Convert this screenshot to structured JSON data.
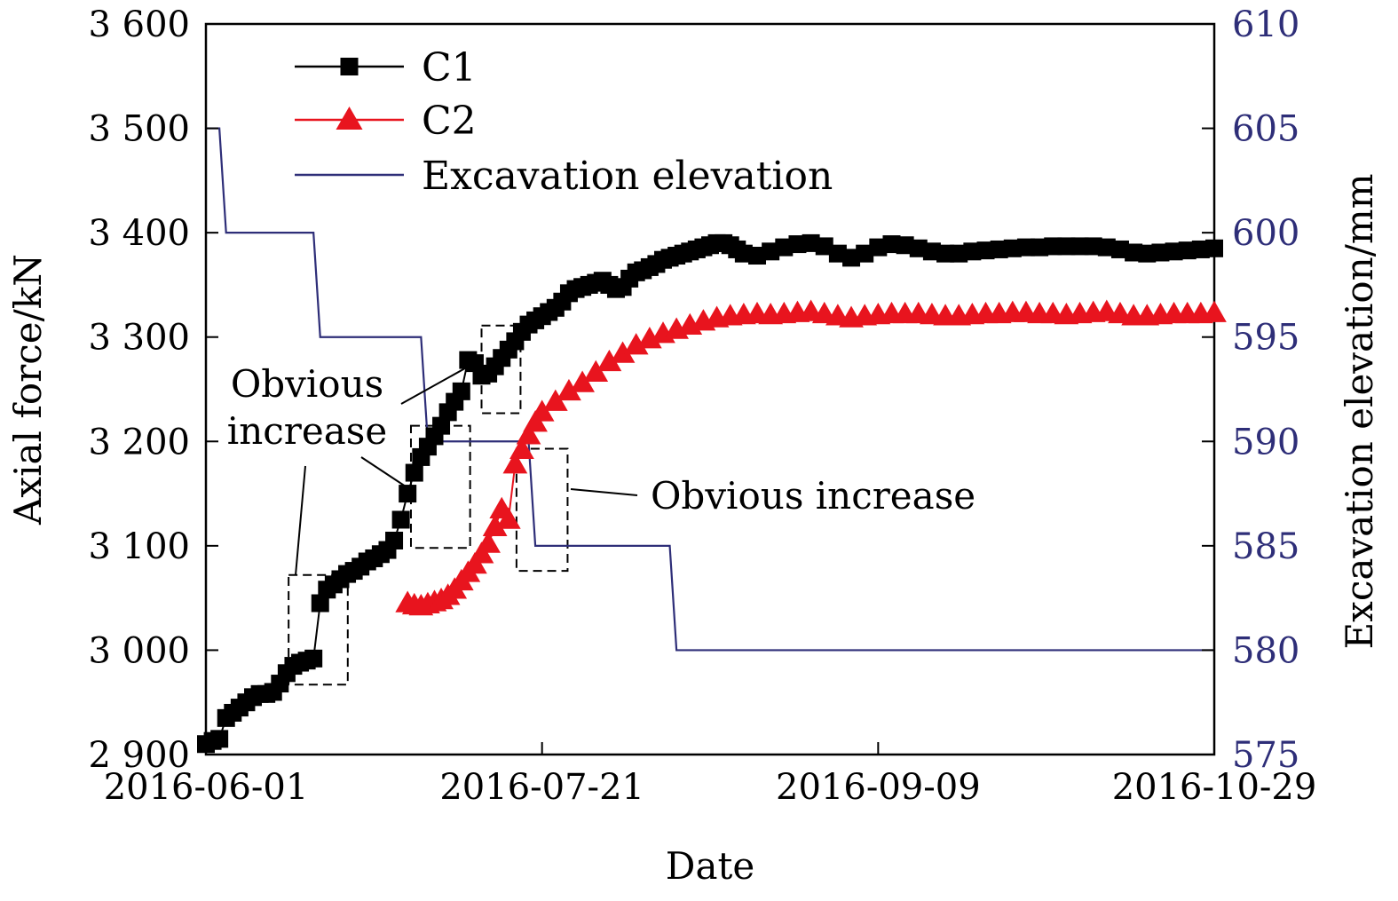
{
  "chart_data": {
    "type": "line",
    "xlabel": "Date",
    "ylabel": "Axial force/kN",
    "y2label": "Excavation elevation/mm",
    "x_ticks": [
      "2016-06-01",
      "2016-07-21",
      "2016-09-09",
      "2016-10-29"
    ],
    "xlim": [
      0,
      150
    ],
    "ylim": [
      2900,
      3600
    ],
    "y_ticks": [
      "2 900",
      "3 000",
      "3 100",
      "3 200",
      "3 300",
      "3 400",
      "3 500",
      "3 600"
    ],
    "y_tick_values": [
      2900,
      3000,
      3100,
      3200,
      3300,
      3400,
      3500,
      3600
    ],
    "y2lim": [
      575,
      610
    ],
    "y2_ticks": [
      "575",
      "580",
      "585",
      "590",
      "595",
      "600",
      "605",
      "610"
    ],
    "y2_tick_values": [
      575,
      580,
      585,
      590,
      595,
      600,
      605,
      610
    ],
    "legend_position": "top-left",
    "grid": false,
    "colors": {
      "c1": "#000000",
      "c2": "#e8141e",
      "excavation": "#2e2e78",
      "right_axis": "#2e2e78"
    },
    "series": [
      {
        "name": "C1",
        "marker": "square",
        "axis": "left",
        "x": [
          0,
          1,
          2,
          3,
          4,
          5,
          6,
          7,
          8,
          9,
          10,
          11,
          12,
          13,
          14,
          15,
          16,
          17,
          18,
          19,
          20,
          21,
          22,
          23,
          24,
          25,
          26,
          27,
          28,
          29,
          30,
          31,
          32,
          33,
          34,
          35,
          36,
          37,
          38,
          39,
          40,
          41,
          42,
          43,
          44,
          45,
          46,
          47,
          48,
          49,
          50,
          51,
          52,
          53,
          54,
          55,
          56,
          57,
          58,
          59,
          60,
          61,
          62,
          63,
          64,
          65,
          66,
          67,
          68,
          69,
          70,
          71,
          72,
          73,
          74,
          75,
          76,
          77,
          78,
          79,
          80,
          82,
          84,
          86,
          88,
          90,
          92,
          94,
          96,
          98,
          100,
          102,
          104,
          106,
          108,
          110,
          112,
          114,
          116,
          118,
          120,
          122,
          124,
          126,
          128,
          130,
          132,
          134,
          136,
          138,
          140,
          142,
          144,
          146,
          148,
          150
        ],
        "values": [
          2910,
          2913,
          2915,
          2935,
          2940,
          2945,
          2950,
          2955,
          2958,
          2958,
          2960,
          2968,
          2978,
          2985,
          2988,
          2990,
          2992,
          3045,
          3058,
          3063,
          3068,
          3073,
          3076,
          3080,
          3085,
          3088,
          3092,
          3096,
          3105,
          3125,
          3150,
          3170,
          3185,
          3195,
          3205,
          3215,
          3228,
          3238,
          3248,
          3278,
          3275,
          3263,
          3265,
          3272,
          3280,
          3288,
          3296,
          3305,
          3312,
          3316,
          3320,
          3324,
          3328,
          3334,
          3342,
          3346,
          3348,
          3350,
          3352,
          3354,
          3350,
          3346,
          3348,
          3356,
          3362,
          3364,
          3367,
          3370,
          3374,
          3376,
          3378,
          3380,
          3382,
          3384,
          3386,
          3388,
          3390,
          3390,
          3388,
          3384,
          3380,
          3378,
          3382,
          3386,
          3389,
          3390,
          3387,
          3380,
          3376,
          3380,
          3386,
          3389,
          3388,
          3385,
          3382,
          3380,
          3380,
          3382,
          3383,
          3384,
          3385,
          3386,
          3386,
          3387,
          3387,
          3387,
          3387,
          3386,
          3384,
          3381,
          3380,
          3381,
          3382,
          3383,
          3384,
          3385
        ]
      },
      {
        "name": "C2",
        "marker": "triangle",
        "axis": "left",
        "x": [
          30,
          31,
          32,
          33,
          34,
          35,
          36,
          37,
          38,
          39,
          40,
          41,
          42,
          43,
          44,
          45,
          46,
          47,
          48,
          49,
          50,
          52,
          54,
          56,
          58,
          60,
          62,
          64,
          66,
          68,
          70,
          72,
          74,
          76,
          78,
          80,
          82,
          84,
          86,
          88,
          90,
          92,
          94,
          96,
          98,
          100,
          102,
          104,
          106,
          108,
          110,
          112,
          114,
          116,
          118,
          120,
          122,
          124,
          126,
          128,
          130,
          132,
          134,
          136,
          138,
          140,
          142,
          144,
          146,
          148,
          150
        ],
        "values": [
          3045,
          3043,
          3042,
          3044,
          3046,
          3048,
          3052,
          3058,
          3066,
          3074,
          3082,
          3092,
          3102,
          3118,
          3135,
          3125,
          3178,
          3192,
          3206,
          3218,
          3228,
          3238,
          3248,
          3256,
          3266,
          3276,
          3284,
          3292,
          3298,
          3303,
          3307,
          3311,
          3315,
          3318,
          3320,
          3321,
          3322,
          3321,
          3322,
          3323,
          3324,
          3322,
          3320,
          3318,
          3320,
          3321,
          3322,
          3322,
          3322,
          3321,
          3320,
          3320,
          3321,
          3322,
          3322,
          3323,
          3323,
          3322,
          3322,
          3321,
          3322,
          3323,
          3324,
          3322,
          3320,
          3320,
          3321,
          3322,
          3322,
          3322,
          3323
        ]
      },
      {
        "name": "Excavation elevation",
        "marker": "none",
        "axis": "right",
        "step_x": [
          0,
          2,
          2,
          3,
          3,
          16,
          16,
          17,
          17,
          32,
          32,
          33,
          33,
          48,
          48,
          49,
          49,
          69,
          69,
          70,
          70,
          150
        ],
        "step_y": [
          605,
          605,
          605,
          600,
          600,
          600,
          600,
          595,
          595,
          595,
          595,
          590,
          590,
          590,
          590,
          585,
          585,
          585,
          585,
          580,
          580,
          580
        ]
      }
    ],
    "annotations": [
      {
        "text_lines": [
          "Obvious",
          "increase"
        ]
      },
      {
        "text_lines": [
          "Obvious increase"
        ]
      }
    ]
  }
}
